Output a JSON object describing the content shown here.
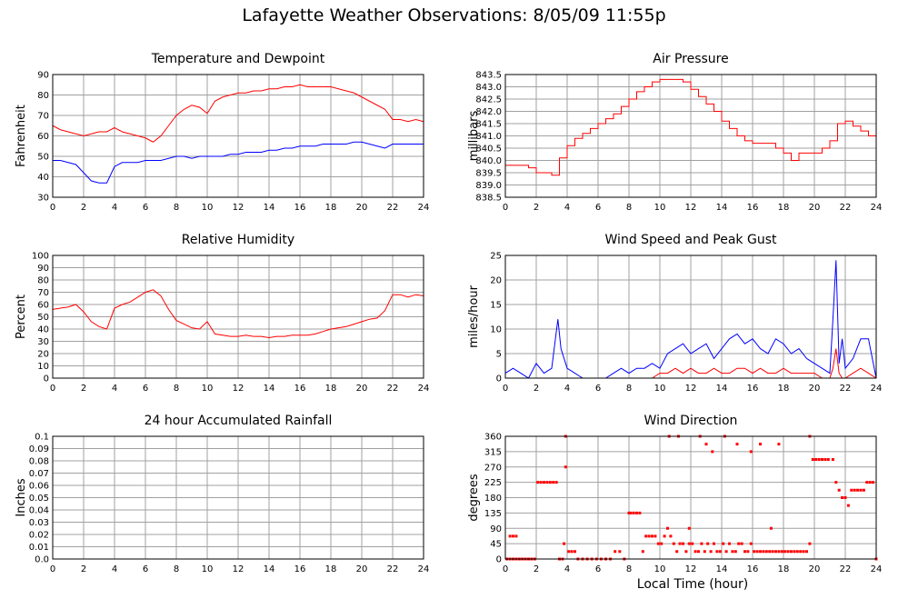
{
  "title": "Lafayette Weather Observations: 8/05/09 11:55p",
  "xaxis_caption": "Local Time (hour)",
  "colors": {
    "red": "#ff0000",
    "blue": "#0000ff",
    "grid": "#a0a0a0",
    "frame": "#000000"
  },
  "chart_data": [
    {
      "id": "temperature",
      "type": "line",
      "title": "Temperature and Dewpoint",
      "ylabel": "Fahrenheit",
      "xlabel": "",
      "xlim": [
        0,
        24
      ],
      "ylim": [
        30,
        90
      ],
      "xticks": [
        "0",
        "2",
        "4",
        "6",
        "8",
        "10",
        "12",
        "14",
        "16",
        "18",
        "20",
        "22",
        "24"
      ],
      "yticks": [
        "30",
        "40",
        "50",
        "60",
        "70",
        "80",
        "90"
      ],
      "grid": true,
      "series": [
        {
          "color": "red",
          "x": [
            0,
            0.5,
            1,
            1.5,
            2,
            2.5,
            3,
            3.5,
            4,
            4.5,
            5,
            5.5,
            6,
            6.5,
            7,
            7.5,
            8,
            8.5,
            9,
            9.5,
            10,
            10.5,
            11,
            11.5,
            12,
            12.5,
            13,
            13.5,
            14,
            14.5,
            15,
            15.5,
            16,
            16.5,
            17,
            17.5,
            18,
            18.5,
            19,
            19.5,
            20,
            20.5,
            21,
            21.5,
            22,
            22.5,
            23,
            23.5,
            24
          ],
          "y": [
            65,
            63,
            62,
            61,
            60,
            61,
            62,
            62,
            64,
            62,
            61,
            60,
            59,
            57,
            60,
            65,
            70,
            73,
            75,
            74,
            71,
            77,
            79,
            80,
            81,
            81,
            82,
            82,
            83,
            83,
            84,
            84,
            85,
            84,
            84,
            84,
            84,
            83,
            82,
            81,
            79,
            77,
            75,
            73,
            68,
            68,
            67,
            68,
            67
          ]
        },
        {
          "color": "blue",
          "x": [
            0,
            0.5,
            1,
            1.5,
            2,
            2.5,
            3,
            3.5,
            4,
            4.5,
            5,
            5.5,
            6,
            6.5,
            7,
            7.5,
            8,
            8.5,
            9,
            9.5,
            10,
            10.5,
            11,
            11.5,
            12,
            12.5,
            13,
            13.5,
            14,
            14.5,
            15,
            15.5,
            16,
            16.5,
            17,
            17.5,
            18,
            18.5,
            19,
            19.5,
            20,
            20.5,
            21,
            21.5,
            22,
            22.5,
            23,
            23.5,
            24
          ],
          "y": [
            48,
            48,
            47,
            46,
            42,
            38,
            37,
            37,
            45,
            47,
            47,
            47,
            48,
            48,
            48,
            49,
            50,
            50,
            49,
            50,
            50,
            50,
            50,
            51,
            51,
            52,
            52,
            52,
            53,
            53,
            54,
            54,
            55,
            55,
            55,
            56,
            56,
            56,
            56,
            57,
            57,
            56,
            55,
            54,
            56,
            56,
            56,
            56,
            56
          ]
        }
      ]
    },
    {
      "id": "pressure",
      "type": "line",
      "title": "Air Pressure",
      "ylabel": "millibars",
      "xlabel": "",
      "xlim": [
        0,
        24
      ],
      "ylim": [
        838.5,
        843.5
      ],
      "xticks": [
        "0",
        "2",
        "4",
        "6",
        "8",
        "10",
        "12",
        "14",
        "16",
        "18",
        "20",
        "22",
        "24"
      ],
      "yticks": [
        "838.5",
        "839.0",
        "839.5",
        "840.0",
        "840.5",
        "841.0",
        "841.5",
        "842.0",
        "842.5",
        "843.0",
        "843.5"
      ],
      "grid": true,
      "series": [
        {
          "color": "red",
          "step": true,
          "x": [
            0,
            0.5,
            1,
            1.5,
            2,
            2.5,
            3,
            3.5,
            4,
            4.5,
            5,
            5.5,
            6,
            6.5,
            7,
            7.5,
            8,
            8.5,
            9,
            9.5,
            10,
            10.5,
            11,
            11.5,
            12,
            12.5,
            13,
            13.5,
            14,
            14.5,
            15,
            15.5,
            16,
            16.5,
            17,
            17.5,
            18,
            18.5,
            19,
            19.5,
            20,
            20.5,
            21,
            21.5,
            22,
            22.5,
            23,
            23.5,
            24
          ],
          "y": [
            839.8,
            839.8,
            839.8,
            839.7,
            839.5,
            839.5,
            839.4,
            840.1,
            840.6,
            840.9,
            841.1,
            841.3,
            841.5,
            841.7,
            841.9,
            842.2,
            842.5,
            842.8,
            843.0,
            843.2,
            843.3,
            843.3,
            843.3,
            843.2,
            842.9,
            842.6,
            842.3,
            842.0,
            841.6,
            841.3,
            841.0,
            840.8,
            840.7,
            840.7,
            840.7,
            840.5,
            840.3,
            840.0,
            840.3,
            840.3,
            840.3,
            840.5,
            840.8,
            841.5,
            841.6,
            841.4,
            841.2,
            841.0,
            840.9
          ]
        }
      ]
    },
    {
      "id": "humidity",
      "type": "line",
      "title": "Relative Humidity",
      "ylabel": "Percent",
      "xlabel": "",
      "xlim": [
        0,
        24
      ],
      "ylim": [
        0,
        100
      ],
      "xticks": [
        "0",
        "2",
        "4",
        "6",
        "8",
        "10",
        "12",
        "14",
        "16",
        "18",
        "20",
        "22",
        "24"
      ],
      "yticks": [
        "0",
        "10",
        "20",
        "30",
        "40",
        "50",
        "60",
        "70",
        "80",
        "90",
        "100"
      ],
      "grid": true,
      "series": [
        {
          "color": "red",
          "x": [
            0,
            0.5,
            1,
            1.5,
            2,
            2.5,
            3,
            3.5,
            4,
            4.5,
            5,
            5.5,
            6,
            6.5,
            7,
            7.5,
            8,
            8.5,
            9,
            9.5,
            10,
            10.5,
            11,
            11.5,
            12,
            12.5,
            13,
            13.5,
            14,
            14.5,
            15,
            15.5,
            16,
            16.5,
            17,
            17.5,
            18,
            18.5,
            19,
            19.5,
            20,
            20.5,
            21,
            21.5,
            22,
            22.5,
            23,
            23.5,
            24
          ],
          "y": [
            56,
            57,
            58,
            60,
            54,
            46,
            42,
            40,
            57,
            60,
            62,
            66,
            70,
            72,
            67,
            56,
            47,
            44,
            41,
            40,
            46,
            36,
            35,
            34,
            34,
            35,
            34,
            34,
            33,
            34,
            34,
            35,
            35,
            35,
            36,
            38,
            40,
            41,
            42,
            44,
            46,
            48,
            49,
            55,
            68,
            68,
            66,
            68,
            67
          ]
        }
      ]
    },
    {
      "id": "wind-speed",
      "type": "line",
      "title": "Wind Speed and Peak Gust",
      "ylabel": "miles/hour",
      "xlabel": "",
      "xlim": [
        0,
        24
      ],
      "ylim": [
        0,
        25
      ],
      "xticks": [
        "0",
        "2",
        "4",
        "6",
        "8",
        "10",
        "12",
        "14",
        "16",
        "18",
        "20",
        "22",
        "24"
      ],
      "yticks": [
        "0",
        "5",
        "10",
        "15",
        "20",
        "25"
      ],
      "grid": true,
      "series": [
        {
          "color": "blue",
          "x": [
            0,
            0.5,
            1,
            1.5,
            2,
            2.5,
            3,
            3.4,
            3.6,
            4,
            4.5,
            5,
            5.5,
            6,
            6.5,
            7,
            7.5,
            8,
            8.5,
            9,
            9.5,
            10,
            10.5,
            11,
            11.5,
            12,
            12.5,
            13,
            13.5,
            14,
            14.5,
            15,
            15.5,
            16,
            16.5,
            17,
            17.5,
            18,
            18.5,
            19,
            19.5,
            20,
            20.5,
            21,
            21.2,
            21.4,
            21.6,
            21.8,
            22,
            22.5,
            23,
            23.5,
            24
          ],
          "y": [
            1,
            2,
            1,
            0,
            3,
            1,
            2,
            12,
            6,
            2,
            1,
            0,
            0,
            0,
            0,
            1,
            2,
            1,
            2,
            2,
            3,
            2,
            5,
            6,
            7,
            5,
            6,
            7,
            4,
            6,
            8,
            9,
            7,
            8,
            6,
            5,
            8,
            7,
            5,
            6,
            4,
            3,
            2,
            1,
            12,
            24,
            3,
            8,
            2,
            4,
            8,
            8,
            0
          ]
        },
        {
          "color": "red",
          "x": [
            0,
            0.5,
            1,
            1.5,
            2,
            2.5,
            3,
            3.5,
            4,
            4.5,
            5,
            5.5,
            6,
            6.5,
            7,
            7.5,
            8,
            8.5,
            9,
            9.5,
            10,
            10.5,
            11,
            11.5,
            12,
            12.5,
            13,
            13.5,
            14,
            14.5,
            15,
            15.5,
            16,
            16.5,
            17,
            17.5,
            18,
            18.5,
            19,
            19.5,
            20,
            20.5,
            21,
            21.2,
            21.4,
            21.6,
            21.8,
            22,
            22.5,
            23,
            23.5,
            24
          ],
          "y": [
            0,
            0,
            0,
            0,
            0,
            0,
            0,
            0,
            0,
            0,
            0,
            0,
            0,
            0,
            0,
            0,
            0,
            0,
            0,
            0,
            1,
            1,
            2,
            1,
            2,
            1,
            1,
            2,
            1,
            1,
            2,
            2,
            1,
            2,
            1,
            1,
            2,
            1,
            1,
            1,
            1,
            0,
            0,
            2,
            6,
            1,
            0,
            0,
            1,
            2,
            1,
            0
          ]
        }
      ]
    },
    {
      "id": "rainfall",
      "type": "line",
      "title": "24 hour Accumulated Rainfall",
      "ylabel": "Inches",
      "xlabel": "",
      "xlim": [
        0,
        24
      ],
      "ylim": [
        0,
        0.1
      ],
      "xticks": [
        "0",
        "2",
        "4",
        "6",
        "8",
        "10",
        "12",
        "14",
        "16",
        "18",
        "20",
        "22",
        "24"
      ],
      "yticks": [
        "0.0",
        "0.01",
        "0.02",
        "0.03",
        "0.04",
        "0.05",
        "0.06",
        "0.07",
        "0.08",
        "0.09",
        "0.1"
      ],
      "grid": true,
      "series": [
        {
          "color": "red",
          "x": [
            0,
            24
          ],
          "y": [
            0,
            0
          ]
        }
      ]
    },
    {
      "id": "wind-direction",
      "type": "scatter",
      "title": "Wind Direction",
      "ylabel": "degrees",
      "xlabel": "Local Time (hour)",
      "xlim": [
        0,
        24
      ],
      "ylim": [
        0,
        360
      ],
      "xticks": [
        "0",
        "2",
        "4",
        "6",
        "8",
        "10",
        "12",
        "14",
        "16",
        "18",
        "20",
        "22",
        "24"
      ],
      "yticks": [
        "0",
        "45",
        "90",
        "135",
        "180",
        "225",
        "270",
        "315",
        "360"
      ],
      "grid": true,
      "series": [
        {
          "color": "red",
          "x": [
            0.1,
            0.3,
            0.5,
            0.7,
            0.9,
            1.1,
            1.3,
            1.5,
            1.7,
            0.3,
            0.5,
            0.7,
            1.9,
            2.1,
            2.3,
            2.5,
            2.7,
            2.9,
            3.1,
            3.3,
            3.5,
            3.7,
            3.8,
            3.9,
            3.9,
            4.1,
            4.3,
            4.5,
            4.7,
            5.0,
            5.3,
            5.6,
            5.9,
            6.2,
            6.5,
            6.8,
            7.1,
            7.4,
            7.7,
            8.0,
            8.1,
            8.3,
            8.5,
            8.7,
            8.9,
            9.1,
            9.3,
            9.5,
            9.7,
            9.9,
            10.1,
            10.3,
            10.5,
            10.7,
            10.9,
            11.1,
            11.3,
            11.5,
            11.7,
            11.9,
            12.1,
            12.3,
            12.5,
            12.7,
            12.9,
            13.1,
            13.3,
            13.5,
            13.7,
            13.9,
            14.1,
            14.3,
            14.5,
            14.7,
            14.9,
            15.1,
            15.3,
            15.5,
            15.7,
            15.9,
            16.1,
            16.3,
            16.5,
            16.7,
            16.9,
            17.1,
            17.3,
            17.5,
            17.7,
            17.9,
            18.1,
            18.3,
            18.5,
            18.7,
            18.9,
            19.1,
            19.3,
            19.5,
            19.7,
            19.9,
            20.1,
            20.3,
            20.5,
            20.7,
            20.9,
            10.6,
            11.2,
            12.6,
            13.4,
            14.2,
            15.9,
            16.5,
            17.7,
            19.7,
            21.2,
            21.4,
            21.6,
            21.8,
            22.0,
            22.2,
            22.4,
            22.6,
            22.8,
            23.0,
            23.2,
            23.4,
            23.6,
            23.8,
            24.0,
            13.0,
            15.0,
            17.2,
            11.9
          ],
          "y": [
            0,
            0,
            0,
            0,
            0,
            0,
            0,
            0,
            0,
            67,
            67,
            67,
            0,
            225,
            225,
            225,
            225,
            225,
            225,
            225,
            0,
            0,
            45,
            360,
            270,
            22,
            22,
            22,
            0,
            0,
            0,
            0,
            0,
            0,
            0,
            0,
            22,
            22,
            0,
            135,
            135,
            135,
            135,
            135,
            22,
            67,
            67,
            67,
            67,
            45,
            45,
            67,
            90,
            67,
            45,
            22,
            45,
            45,
            22,
            45,
            45,
            22,
            22,
            45,
            22,
            45,
            22,
            45,
            22,
            22,
            45,
            22,
            45,
            22,
            22,
            45,
            45,
            22,
            22,
            45,
            22,
            22,
            22,
            22,
            22,
            22,
            22,
            22,
            22,
            22,
            22,
            22,
            22,
            22,
            22,
            22,
            22,
            22,
            45,
            292,
            292,
            292,
            292,
            292,
            292,
            360,
            360,
            360,
            315,
            360,
            315,
            337,
            337,
            360,
            292,
            225,
            202,
            180,
            180,
            157,
            202,
            202,
            202,
            202,
            202,
            225,
            225,
            225,
            0,
            337,
            337,
            90,
            90
          ]
        }
      ]
    }
  ]
}
